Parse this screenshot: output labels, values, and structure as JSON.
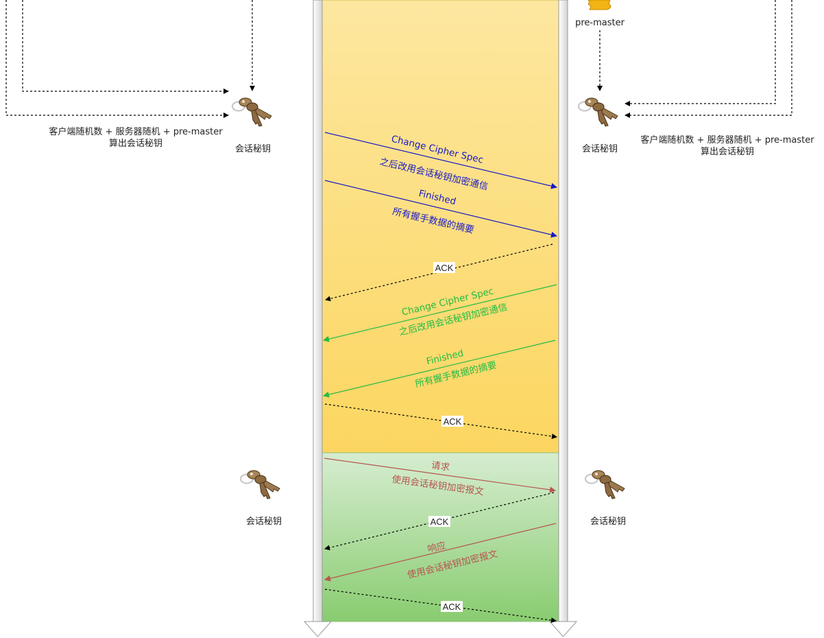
{
  "top_right_label": "pre-master",
  "left_formula": {
    "line1": "客户端随机数 + 服务器随机 +  pre-master",
    "line2": "算出会话秘钥"
  },
  "right_formula": {
    "line1": "客户端随机数 + 服务器随机 +  pre-master",
    "line2": "算出会话秘钥"
  },
  "key_labels": {
    "left_top": "会话秘钥",
    "right_top": "会话秘钥",
    "left_bottom": "会话秘钥",
    "right_bottom": "会话秘钥"
  },
  "messages": {
    "client_ccs_title": "Change Cipher Spec",
    "client_ccs_desc": "之后改用会话秘钥加密通信",
    "client_finished_title": "Finished",
    "client_finished_desc": "所有握手数据的摘要",
    "ack1": "ACK",
    "server_ccs_title": "Change Cipher Spec",
    "server_ccs_desc": "之后改用会话秘钥加密通信",
    "server_finished_title": "Finished",
    "server_finished_desc": "所有握手数据的摘要",
    "ack2": "ACK",
    "request_title": "请求",
    "request_desc": "使用会话秘钥加密报文",
    "ack3": "ACK",
    "response_title": "响应",
    "response_desc": "使用会话秘钥加密报文",
    "ack4": "ACK"
  },
  "colors": {
    "handshake_top": "#FDE7A0",
    "handshake_bottom": "#FCD660",
    "data_top": "#D6EDD0",
    "data_bottom": "#89CC70",
    "client_msg": "#1A1AC8",
    "server_msg": "#22BB44",
    "app_msg": "#B85450",
    "ack_line": "#000000",
    "timeline": "#D9D9D9"
  }
}
